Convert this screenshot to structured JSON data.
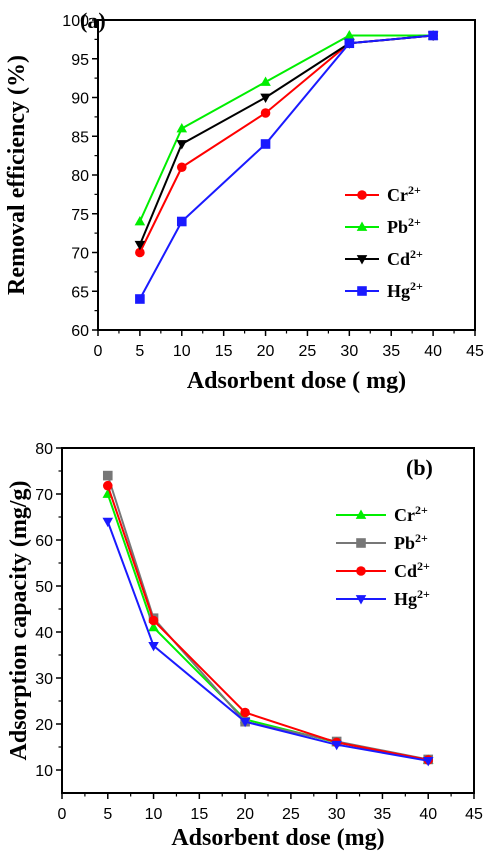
{
  "chart_data": [
    {
      "type": "line",
      "panel_label": "(a)",
      "xlabel": "Adsorbent dose ( mg)",
      "ylabel": "Removal efficiency (%)",
      "xlim": [
        0,
        45
      ],
      "ylim": [
        60,
        100
      ],
      "xticks": [
        "0",
        "5",
        "10",
        "15",
        "20",
        "25",
        "30",
        "35",
        "40",
        "45"
      ],
      "yticks": [
        "60",
        "65",
        "70",
        "75",
        "80",
        "85",
        "90",
        "95",
        "100"
      ],
      "grid": false,
      "legend_position": "right",
      "x": [
        5,
        10,
        20,
        30,
        40
      ],
      "series": [
        {
          "name": "Cr",
          "sup": "2+",
          "color": "#ff0000",
          "marker": "circle",
          "values": [
            70,
            81,
            88,
            97,
            98
          ]
        },
        {
          "name": "Pb",
          "sup": "2+",
          "color": "#00ee00",
          "marker": "triangle-up",
          "values": [
            74,
            86,
            92,
            98,
            98
          ]
        },
        {
          "name": "Cd",
          "sup": "2+",
          "color": "#000000",
          "marker": "triangle-down",
          "values": [
            71,
            84,
            90,
            97,
            98
          ]
        },
        {
          "name": "Hg",
          "sup": "2+",
          "color": "#1a1aff",
          "marker": "square",
          "values": [
            64,
            74,
            84,
            97,
            98
          ]
        }
      ]
    },
    {
      "type": "line",
      "panel_label": "(b)",
      "xlabel": "Adsorbent dose (mg)",
      "ylabel": "Adsorption capacity (mg/g)",
      "xlim": [
        0,
        45
      ],
      "ylim": [
        5,
        80
      ],
      "xticks": [
        "0",
        "5",
        "10",
        "15",
        "20",
        "25",
        "30",
        "35",
        "40",
        "45"
      ],
      "yticks": [
        "10",
        "20",
        "30",
        "40",
        "50",
        "60",
        "70",
        "80"
      ],
      "grid": false,
      "legend_position": "right",
      "x": [
        5,
        10,
        20,
        30,
        40
      ],
      "series": [
        {
          "name": "Cr",
          "sup": "2+",
          "color": "#00ee00",
          "marker": "triangle-up",
          "values": [
            70,
            41,
            21,
            16,
            12.2
          ]
        },
        {
          "name": "Pb",
          "sup": "2+",
          "color": "#777777",
          "marker": "square",
          "values": [
            74,
            43,
            20.5,
            16.2,
            12.3
          ]
        },
        {
          "name": "Cd",
          "sup": "2+",
          "color": "#ff0000",
          "marker": "circle",
          "values": [
            71.8,
            42.5,
            22.5,
            16,
            12.2
          ]
        },
        {
          "name": "Hg",
          "sup": "2+",
          "color": "#1a1aff",
          "marker": "triangle-down",
          "values": [
            64,
            37,
            20.5,
            15.5,
            12
          ]
        }
      ]
    }
  ]
}
